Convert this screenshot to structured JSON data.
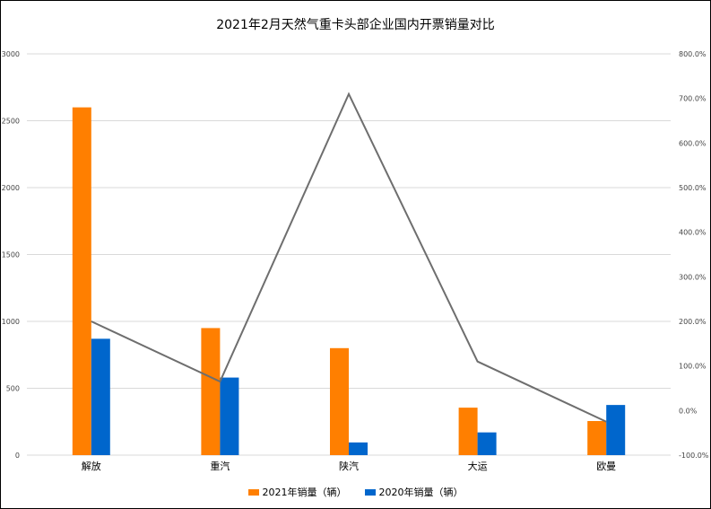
{
  "chart_data": {
    "type": "bar",
    "title": "2021年2月天然气重卡头部企业国内开票销量对比",
    "categories": [
      "解放",
      "重汽",
      "陕汽",
      "大运",
      "欧曼"
    ],
    "series": [
      {
        "name": "2021年销量（辆）",
        "values": [
          2600,
          950,
          800,
          355,
          255
        ],
        "color": "#ff7f00"
      },
      {
        "name": "2020年销量（辆）",
        "values": [
          870,
          580,
          95,
          170,
          375
        ],
        "color": "#0066cc"
      }
    ],
    "line_series": {
      "values": [
        200,
        65,
        710,
        110,
        -25
      ],
      "color": "#6e6e6e",
      "axis": "right"
    },
    "ylim": [
      0,
      3000
    ],
    "yticks": [
      0,
      500,
      1000,
      1500,
      2000,
      2500,
      3000
    ],
    "y2lim": [
      -100,
      800
    ],
    "y2ticks": [
      "-100.0%",
      "0.0%",
      "100.0%",
      "200.0%",
      "300.0%",
      "400.0%",
      "500.0%",
      "600.0%",
      "700.0%",
      "800.0%"
    ],
    "grid": true,
    "legend_position": "bottom"
  }
}
